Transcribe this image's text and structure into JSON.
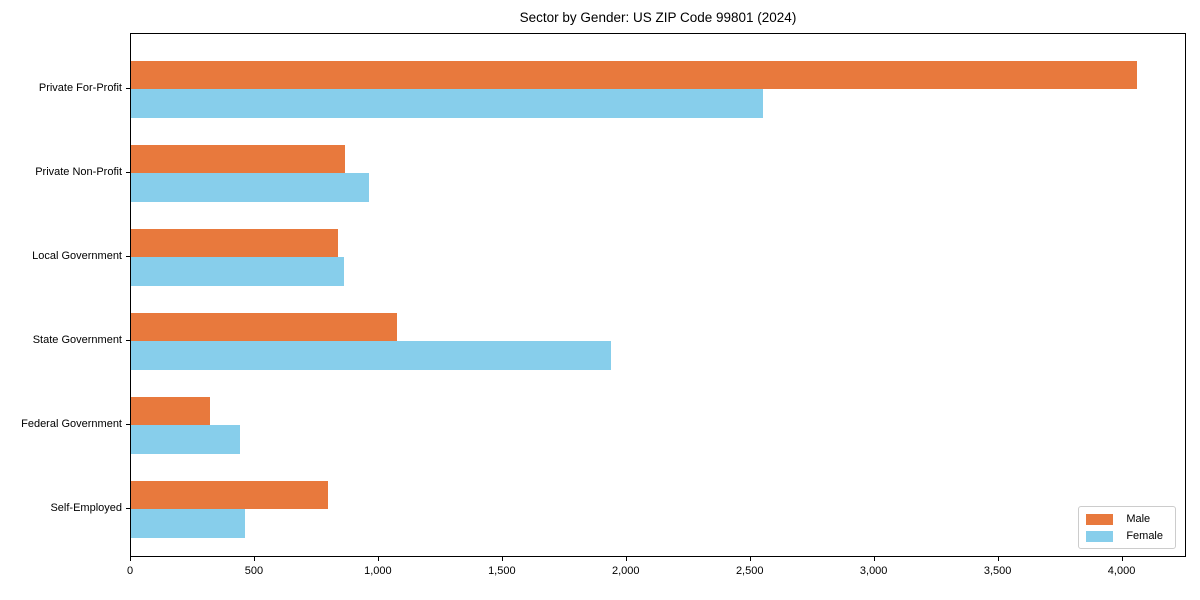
{
  "title": "Sector by Gender: US ZIP Code 99801 (2024)",
  "chart_data": {
    "type": "bar",
    "orientation": "horizontal",
    "title": "Sector by Gender: US ZIP Code 99801 (2024)",
    "xlabel": "",
    "ylabel": "",
    "categories": [
      "Private For-Profit",
      "Private Non-Profit",
      "Local Government",
      "State Government",
      "Federal Government",
      "Self-Employed"
    ],
    "series": [
      {
        "name": "Male",
        "color": "#e8793d",
        "values": [
          4060,
          865,
          835,
          1075,
          320,
          795
        ]
      },
      {
        "name": "Female",
        "color": "#87ceeb",
        "values": [
          2550,
          960,
          860,
          1935,
          440,
          460
        ]
      }
    ],
    "xlim": [
      0,
      4260
    ],
    "x_ticks": [
      0,
      500,
      1000,
      1500,
      2000,
      2500,
      3000,
      3500,
      4000
    ],
    "x_tick_labels": [
      "0",
      "500",
      "1,000",
      "1,500",
      "2,000",
      "2,500",
      "3,000",
      "3,500",
      "4,000"
    ],
    "grid": false,
    "legend": {
      "position": "lower right"
    },
    "colors": {
      "background": "#ffffff",
      "axis": "#000000",
      "legend_border": "#cccccc"
    }
  }
}
